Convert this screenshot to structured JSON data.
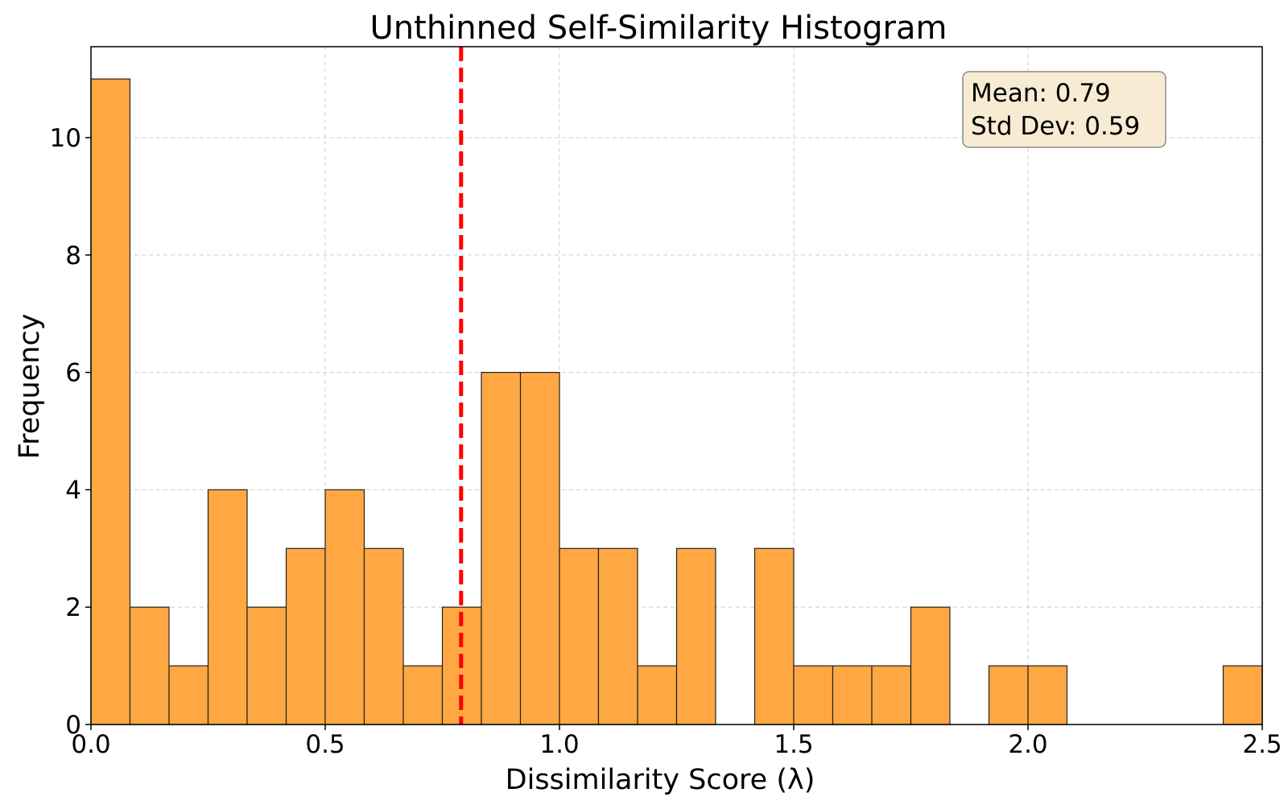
{
  "chart_data": {
    "type": "bar",
    "title": "Unthinned Self-Similarity Histogram",
    "xlabel": "Dissimilarity Score (λ)",
    "ylabel": "Frequency",
    "xlim": [
      0.0,
      2.5
    ],
    "ylim": [
      0,
      11.55
    ],
    "bin_width": 0.08333,
    "bins": [
      {
        "x0": 0.0,
        "x1": 0.0833,
        "count": 11
      },
      {
        "x0": 0.0833,
        "x1": 0.1667,
        "count": 2
      },
      {
        "x0": 0.1667,
        "x1": 0.25,
        "count": 1
      },
      {
        "x0": 0.25,
        "x1": 0.3333,
        "count": 4
      },
      {
        "x0": 0.3333,
        "x1": 0.4167,
        "count": 2
      },
      {
        "x0": 0.4167,
        "x1": 0.5,
        "count": 3
      },
      {
        "x0": 0.5,
        "x1": 0.5833,
        "count": 4
      },
      {
        "x0": 0.5833,
        "x1": 0.6667,
        "count": 3
      },
      {
        "x0": 0.6667,
        "x1": 0.75,
        "count": 1
      },
      {
        "x0": 0.75,
        "x1": 0.8333,
        "count": 2
      },
      {
        "x0": 0.8333,
        "x1": 0.9167,
        "count": 6
      },
      {
        "x0": 0.9167,
        "x1": 1.0,
        "count": 6
      },
      {
        "x0": 1.0,
        "x1": 1.0833,
        "count": 3
      },
      {
        "x0": 1.0833,
        "x1": 1.1667,
        "count": 3
      },
      {
        "x0": 1.1667,
        "x1": 1.25,
        "count": 1
      },
      {
        "x0": 1.25,
        "x1": 1.3333,
        "count": 3
      },
      {
        "x0": 1.3333,
        "x1": 1.4167,
        "count": 0
      },
      {
        "x0": 1.4167,
        "x1": 1.5,
        "count": 3
      },
      {
        "x0": 1.5,
        "x1": 1.5833,
        "count": 1
      },
      {
        "x0": 1.5833,
        "x1": 1.6667,
        "count": 1
      },
      {
        "x0": 1.6667,
        "x1": 1.75,
        "count": 1
      },
      {
        "x0": 1.75,
        "x1": 1.8333,
        "count": 2
      },
      {
        "x0": 1.8333,
        "x1": 1.9167,
        "count": 0
      },
      {
        "x0": 1.9167,
        "x1": 2.0,
        "count": 1
      },
      {
        "x0": 2.0,
        "x1": 2.0833,
        "count": 1
      },
      {
        "x0": 2.0833,
        "x1": 2.1667,
        "count": 0
      },
      {
        "x0": 2.1667,
        "x1": 2.25,
        "count": 0
      },
      {
        "x0": 2.25,
        "x1": 2.3333,
        "count": 0
      },
      {
        "x0": 2.3333,
        "x1": 2.4167,
        "count": 0
      },
      {
        "x0": 2.4167,
        "x1": 2.5,
        "count": 1
      }
    ],
    "xticks": [
      0.0,
      0.5,
      1.0,
      1.5,
      2.0,
      2.5
    ],
    "xtick_labels": [
      "0.0",
      "0.5",
      "1.0",
      "1.5",
      "2.0",
      "2.5"
    ],
    "yticks": [
      0,
      2,
      4,
      6,
      8,
      10
    ],
    "ytick_labels": [
      "0",
      "2",
      "4",
      "6",
      "8",
      "10"
    ],
    "mean_line": {
      "x": 0.79,
      "style": "dashed"
    },
    "stats_box": {
      "mean_text": "Mean: 0.79",
      "std_text": "Std Dev: 0.59",
      "placement": "top-right"
    },
    "grid": true,
    "colors": {
      "bar_fill": "#ffa843",
      "bar_edge": "#222222",
      "mean_line": "#ff0000",
      "stats_box_fill": "#f8ebd4",
      "stats_box_edge": "#8a8a8a"
    }
  }
}
